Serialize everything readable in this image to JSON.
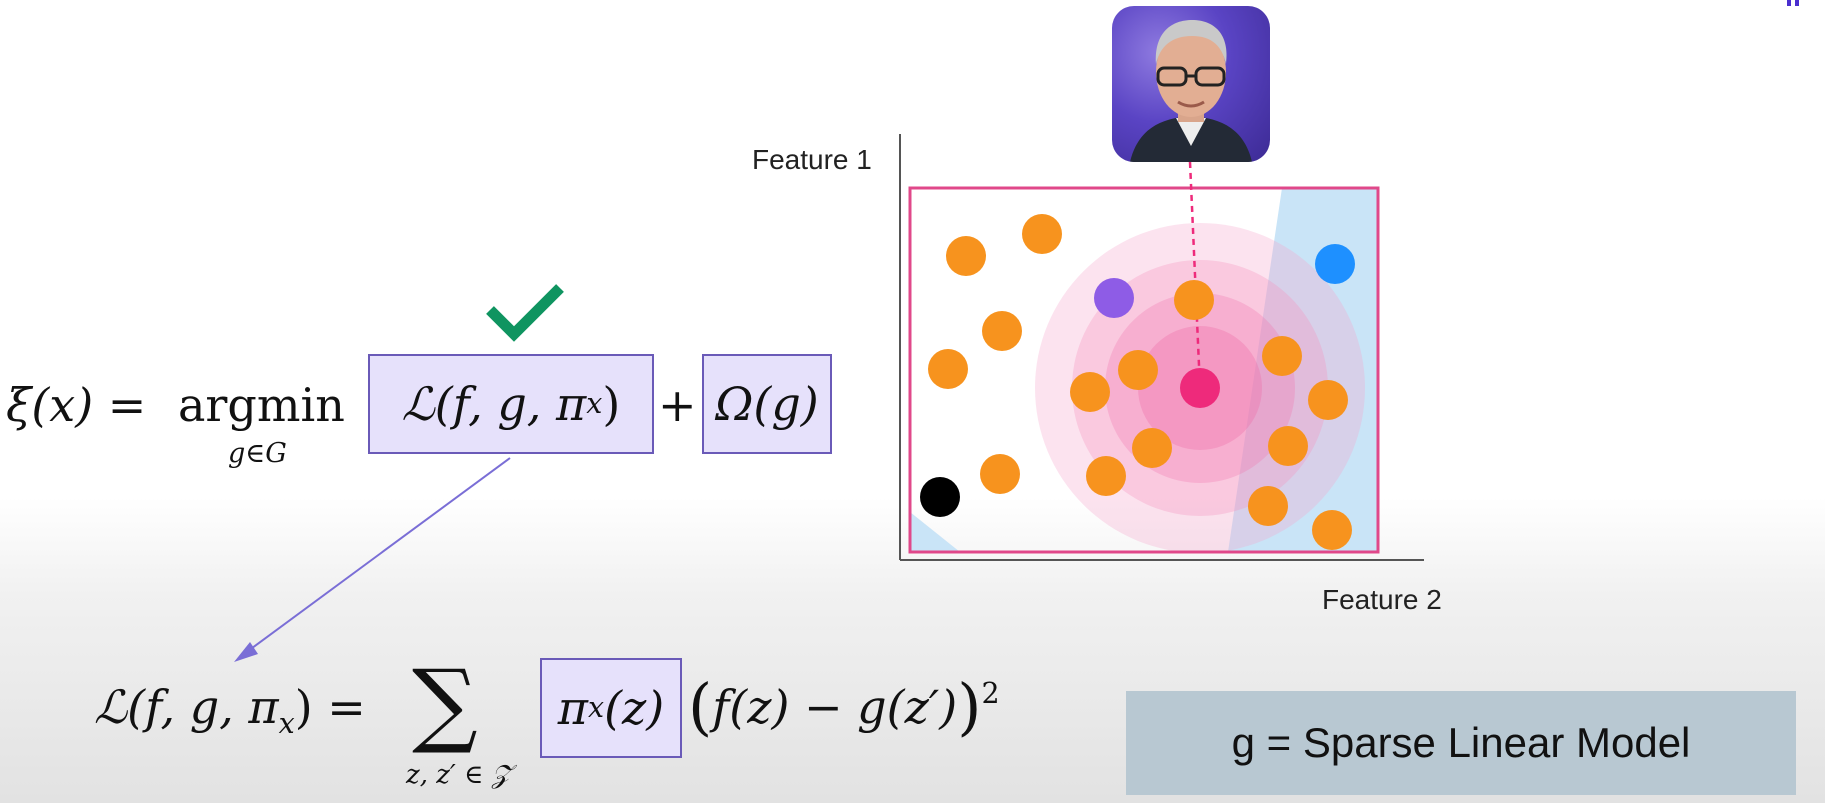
{
  "formulas": {
    "xi_lhs": "ξ(x) =",
    "argmin_word": "argmin",
    "argmin_subscript": "g∈G",
    "loss_term": "ℒ(f, g, π",
    "loss_term_sub": "x",
    "loss_term_close": ")",
    "plus": "+",
    "omega_term": "Ω(g)",
    "loss_def_lhs": "ℒ(f, g, π",
    "loss_def_lhs_sub": "x",
    "loss_def_lhs_close": ") =",
    "sum_symbol": "∑",
    "sum_subscript": "z, z′ ∈ 𝒵",
    "pi_term": "π",
    "pi_term_sub": "x",
    "pi_term_arg": "(z)",
    "residual_open": "(",
    "residual_body": "f(z) − g(z′)",
    "residual_close": ")",
    "residual_power": "2"
  },
  "plot": {
    "ylabel": "Feature 1",
    "xlabel": "Feature 2"
  },
  "model_box": {
    "label": "g = Sparse Linear Model"
  },
  "colors": {
    "highlight_fill": "#e6e1fb",
    "highlight_border": "#6a5ab8",
    "checkmark": "#0f9460",
    "orange_point": "#f7931e",
    "blue_point": "#1e90ff",
    "purple_point": "#8e5ce6",
    "black_point": "#000000",
    "target_point": "#ee2a7b",
    "plot_border": "#e0488a",
    "decision_region": "#c9e4f7",
    "proximity_ring": "#f7a8cc"
  },
  "icons": {
    "check": "checkmark-icon",
    "arrow": "arrow-connector"
  }
}
